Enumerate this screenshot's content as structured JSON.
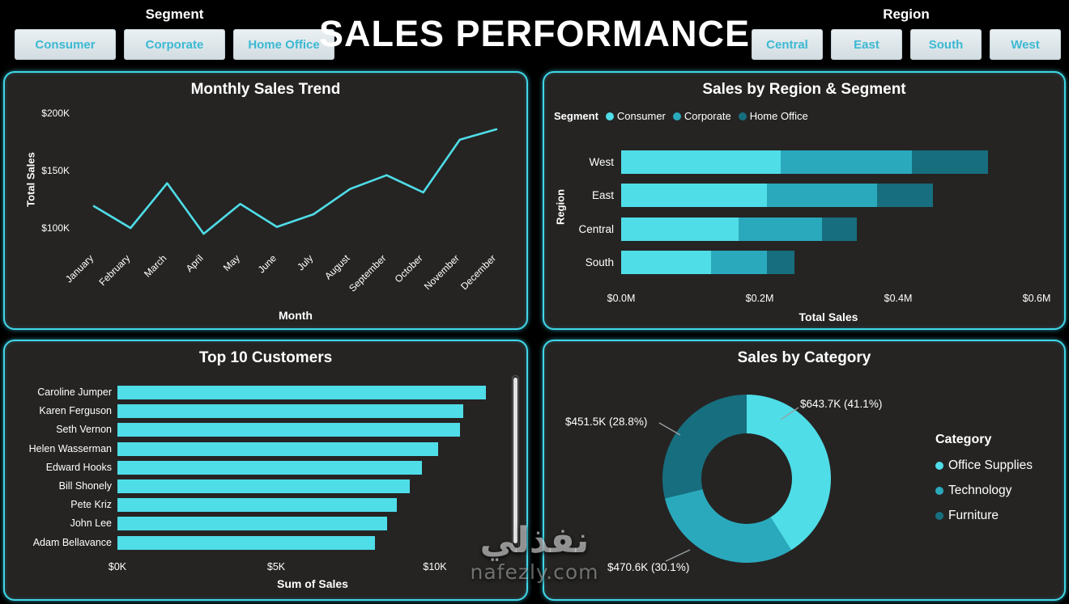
{
  "header": {
    "title": "SALES PERFORMANCE",
    "segment_slicer": {
      "label": "Segment",
      "buttons": [
        "Consumer",
        "Corporate",
        "Home Office"
      ]
    },
    "region_slicer": {
      "label": "Region",
      "buttons": [
        "Central",
        "East",
        "South",
        "West"
      ]
    }
  },
  "watermark": {
    "arabic": "نفذلي",
    "site": "nafezly.com"
  },
  "colors": {
    "accent": "#40d6e8",
    "panel_bg": "#252423",
    "consumer": "#4fdde8",
    "corporate": "#2aa9bd",
    "home_office": "#176e7e",
    "button_text": "#3cb9d2"
  },
  "chart_data": [
    {
      "id": "monthly_trend",
      "type": "line",
      "title": "Monthly Sales Trend",
      "xlabel": "Month",
      "ylabel": "Total Sales",
      "x": [
        "January",
        "February",
        "March",
        "April",
        "May",
        "June",
        "July",
        "August",
        "September",
        "October",
        "November",
        "December"
      ],
      "values_k": [
        119,
        100,
        139,
        95,
        121,
        101,
        112,
        134,
        146,
        131,
        177,
        186
      ],
      "y_ticks": [
        {
          "label": "$100K",
          "value": 100
        },
        {
          "label": "$150K",
          "value": 150
        },
        {
          "label": "$200K",
          "value": 200
        }
      ],
      "ylim": [
        85,
        212
      ],
      "grid": false,
      "line_color": "#4fdde8"
    },
    {
      "id": "region_segment",
      "type": "stacked_bar_h",
      "title": "Sales by Region & Segment",
      "xlabel": "Total Sales",
      "ylabel": "Region",
      "legend_title": "Segment",
      "legend_position": "top-left",
      "categories": [
        "West",
        "East",
        "Central",
        "South"
      ],
      "series": [
        {
          "name": "Consumer",
          "color": "#4fdde8",
          "values_m": [
            0.23,
            0.21,
            0.17,
            0.13
          ]
        },
        {
          "name": "Corporate",
          "color": "#2aa9bd",
          "values_m": [
            0.19,
            0.16,
            0.12,
            0.08
          ]
        },
        {
          "name": "Home Office",
          "color": "#176e7e",
          "values_m": [
            0.11,
            0.08,
            0.05,
            0.04
          ]
        }
      ],
      "x_ticks": [
        {
          "label": "$0.0M",
          "value": 0.0
        },
        {
          "label": "$0.2M",
          "value": 0.2
        },
        {
          "label": "$0.4M",
          "value": 0.4
        },
        {
          "label": "$0.6M",
          "value": 0.6
        }
      ],
      "xlim": [
        0,
        0.7
      ]
    },
    {
      "id": "top_customers",
      "type": "bar_h",
      "title": "Top 10 Customers",
      "xlabel": "Sum of Sales",
      "categories": [
        "Caroline Jumper",
        "Karen Ferguson",
        "Seth Vernon",
        "Helen Wasserman",
        "Edward Hooks",
        "Bill Shonely",
        "Pete Kriz",
        "John Lee",
        "Adam Bellavance"
      ],
      "values_k": [
        11.6,
        10.9,
        10.8,
        10.1,
        9.6,
        9.2,
        8.8,
        8.5,
        8.1
      ],
      "x_ticks": [
        {
          "label": "$0K",
          "value": 0
        },
        {
          "label": "$5K",
          "value": 5
        },
        {
          "label": "$10K",
          "value": 10
        }
      ],
      "xlim": [
        0,
        12.8
      ],
      "bar_color": "#4fdde8",
      "has_scrollbar": true
    },
    {
      "id": "sales_by_category",
      "type": "donut",
      "title": "Sales by Category",
      "legend_title": "Category",
      "legend_position": "right",
      "slices": [
        {
          "name": "Office Supplies",
          "label": "$643.7K (41.1%)",
          "value_k": 643.7,
          "pct": 41.1,
          "color": "#4fdde8"
        },
        {
          "name": "Technology",
          "label": "$470.6K (30.1%)",
          "value_k": 470.6,
          "pct": 30.1,
          "color": "#2aa9bd"
        },
        {
          "name": "Furniture",
          "label": "$451.5K (28.8%)",
          "value_k": 451.5,
          "pct": 28.8,
          "color": "#176e7e"
        }
      ]
    }
  ]
}
